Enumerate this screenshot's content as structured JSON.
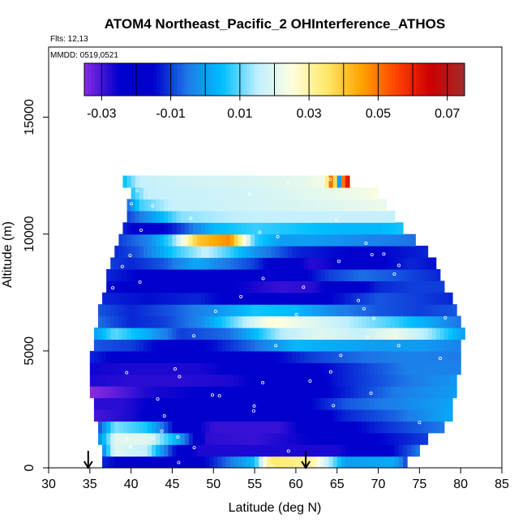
{
  "chart_data": {
    "type": "heatmap",
    "title": "ATOM4 Northeast_Pacific_2 OHInterference_ATHOS",
    "flights_label": "Flts: 12,13",
    "dates_label": "MMDD: 0519,0521",
    "xlabel": "Latitude (deg N)",
    "ylabel": "Altitude (m)",
    "xlim": [
      30,
      85
    ],
    "ylim": [
      0,
      18000
    ],
    "xticks": [
      "30",
      "35",
      "40",
      "45",
      "50",
      "55",
      "60",
      "65",
      "70",
      "75",
      "80",
      "85"
    ],
    "yticks": [
      "0",
      "5000",
      "10000",
      "15000"
    ],
    "colorbar": {
      "ticks": [
        "-0.03",
        "-0.01",
        "0.01",
        "0.03",
        "0.05",
        "0.07"
      ],
      "range": [
        -0.035,
        0.075
      ],
      "colors": [
        "#8a2be2",
        "#0000cd",
        "#0000cd",
        "#1e7be8",
        "#00bfff",
        "#bfefff",
        "#ffffe0",
        "#ffe96b",
        "#ffa500",
        "#ff4500",
        "#cc0000",
        "#a52a2a"
      ]
    },
    "bands": [
      {
        "alt": 250,
        "lat_min": 36.5,
        "lat_max": 73.5,
        "profile": [
          [
            36.5,
            -0.012
          ],
          [
            40,
            -0.018
          ],
          [
            45,
            -0.025
          ],
          [
            50,
            -0.012
          ],
          [
            55,
            0.005
          ],
          [
            57,
            0.035
          ],
          [
            62,
            0.03
          ],
          [
            66,
            0.0
          ],
          [
            72,
            0.002
          ],
          [
            73.5,
            -0.01
          ]
        ]
      },
      {
        "alt": 750,
        "lat_min": 36.5,
        "lat_max": 75,
        "profile": [
          [
            36.5,
            -0.005
          ],
          [
            38,
            0.02
          ],
          [
            42,
            0.015
          ],
          [
            45,
            -0.012
          ],
          [
            48,
            -0.027
          ],
          [
            55,
            -0.027
          ],
          [
            60,
            -0.027
          ],
          [
            65,
            -0.027
          ],
          [
            70,
            -0.02
          ],
          [
            75,
            -0.005
          ]
        ]
      },
      {
        "alt": 1250,
        "lat_min": 36,
        "lat_max": 76,
        "profile": [
          [
            36,
            -0.005
          ],
          [
            38,
            0.02
          ],
          [
            42,
            0.02
          ],
          [
            46,
            0.0
          ],
          [
            49,
            -0.028
          ],
          [
            55,
            -0.029
          ],
          [
            62,
            -0.025
          ],
          [
            70,
            -0.015
          ],
          [
            76,
            -0.01
          ]
        ]
      },
      {
        "alt": 1750,
        "lat_min": 36,
        "lat_max": 78,
        "profile": [
          [
            36,
            -0.01
          ],
          [
            38,
            0.012
          ],
          [
            42,
            0.006
          ],
          [
            46,
            -0.02
          ],
          [
            50,
            -0.029
          ],
          [
            58,
            -0.029
          ],
          [
            63,
            -0.02
          ],
          [
            70,
            -0.012
          ],
          [
            78,
            -0.005
          ]
        ]
      },
      {
        "alt": 2250,
        "lat_min": 35.5,
        "lat_max": 79,
        "profile": [
          [
            35.5,
            -0.03
          ],
          [
            40,
            -0.027
          ],
          [
            45,
            -0.02
          ],
          [
            52,
            -0.015
          ],
          [
            60,
            -0.022
          ],
          [
            66,
            -0.012
          ],
          [
            72,
            -0.007
          ],
          [
            79,
            0.002
          ]
        ]
      },
      {
        "alt": 2750,
        "lat_min": 35.5,
        "lat_max": 79,
        "profile": [
          [
            35.5,
            -0.028
          ],
          [
            39,
            -0.028
          ],
          [
            45,
            -0.022
          ],
          [
            52,
            -0.02
          ],
          [
            60,
            -0.018
          ],
          [
            66,
            -0.008
          ],
          [
            72,
            -0.004
          ],
          [
            79,
            0.001
          ]
        ]
      },
      {
        "alt": 3250,
        "lat_min": 35,
        "lat_max": 79.5,
        "profile": [
          [
            35,
            -0.035
          ],
          [
            38,
            -0.032
          ],
          [
            42,
            -0.027
          ],
          [
            48,
            -0.025
          ],
          [
            56,
            -0.022
          ],
          [
            64,
            -0.015
          ],
          [
            72,
            -0.005
          ],
          [
            79.5,
            0.0
          ]
        ]
      },
      {
        "alt": 3750,
        "lat_min": 35,
        "lat_max": 79.5,
        "profile": [
          [
            35,
            -0.027
          ],
          [
            40,
            -0.028
          ],
          [
            46,
            -0.028
          ],
          [
            52,
            -0.027
          ],
          [
            58,
            -0.022
          ],
          [
            66,
            -0.012
          ],
          [
            74,
            -0.005
          ],
          [
            79.5,
            -0.001
          ]
        ]
      },
      {
        "alt": 4250,
        "lat_min": 35,
        "lat_max": 80,
        "profile": [
          [
            35,
            -0.026
          ],
          [
            40,
            -0.027
          ],
          [
            48,
            -0.027
          ],
          [
            56,
            -0.022
          ],
          [
            62,
            -0.016
          ],
          [
            68,
            -0.01
          ],
          [
            74,
            -0.004
          ],
          [
            80,
            -0.004
          ]
        ]
      },
      {
        "alt": 4750,
        "lat_min": 35,
        "lat_max": 80,
        "profile": [
          [
            35,
            -0.012
          ],
          [
            40,
            -0.018
          ],
          [
            48,
            -0.02
          ],
          [
            55,
            -0.018
          ],
          [
            62,
            -0.01
          ],
          [
            68,
            -0.006
          ],
          [
            74,
            -0.004
          ],
          [
            80,
            -0.005
          ]
        ]
      },
      {
        "alt": 5250,
        "lat_min": 35.5,
        "lat_max": 80,
        "profile": [
          [
            35.5,
            -0.008
          ],
          [
            40,
            -0.01
          ],
          [
            45,
            -0.018
          ],
          [
            50,
            -0.014
          ],
          [
            55,
            -0.006
          ],
          [
            60,
            0.004
          ],
          [
            65,
            0.002
          ],
          [
            70,
            0.0
          ],
          [
            75,
            0.0
          ],
          [
            80,
            -0.004
          ]
        ]
      },
      {
        "alt": 5750,
        "lat_min": 35.5,
        "lat_max": 80.5,
        "profile": [
          [
            35.5,
            0.0
          ],
          [
            38,
            0.01
          ],
          [
            42,
            0.002
          ],
          [
            46,
            -0.01
          ],
          [
            52,
            -0.006
          ],
          [
            58,
            0.014
          ],
          [
            63,
            0.02
          ],
          [
            68,
            0.016
          ],
          [
            72,
            0.022
          ],
          [
            76,
            0.014
          ],
          [
            80.5,
            0.0
          ]
        ]
      },
      {
        "alt": 6250,
        "lat_min": 36,
        "lat_max": 80,
        "profile": [
          [
            36,
            -0.006
          ],
          [
            40,
            -0.012
          ],
          [
            44,
            -0.01
          ],
          [
            48,
            -0.004
          ],
          [
            53,
            0.012
          ],
          [
            57,
            0.026
          ],
          [
            62,
            0.02
          ],
          [
            67,
            0.014
          ],
          [
            72,
            0.008
          ],
          [
            76,
            0.002
          ],
          [
            80,
            -0.006
          ]
        ]
      },
      {
        "alt": 6750,
        "lat_min": 36,
        "lat_max": 79.5,
        "profile": [
          [
            36,
            -0.008
          ],
          [
            40,
            -0.012
          ],
          [
            45,
            -0.008
          ],
          [
            50,
            -0.002
          ],
          [
            55,
            0.006
          ],
          [
            60,
            0.004
          ],
          [
            65,
            -0.004
          ],
          [
            70,
            -0.008
          ],
          [
            75,
            -0.01
          ],
          [
            79.5,
            -0.008
          ]
        ]
      },
      {
        "alt": 7250,
        "lat_min": 36.5,
        "lat_max": 79,
        "profile": [
          [
            36.5,
            -0.012
          ],
          [
            42,
            -0.014
          ],
          [
            48,
            -0.012
          ],
          [
            54,
            -0.018
          ],
          [
            60,
            -0.02
          ],
          [
            65,
            -0.014
          ],
          [
            70,
            -0.008
          ],
          [
            75,
            -0.01
          ],
          [
            79,
            -0.012
          ]
        ]
      },
      {
        "alt": 7750,
        "lat_min": 37,
        "lat_max": 78,
        "profile": [
          [
            37,
            -0.014
          ],
          [
            42,
            -0.018
          ],
          [
            48,
            -0.022
          ],
          [
            54,
            -0.026
          ],
          [
            58,
            -0.029
          ],
          [
            62,
            -0.028
          ],
          [
            66,
            -0.02
          ],
          [
            70,
            -0.012
          ],
          [
            74,
            -0.01
          ],
          [
            78,
            -0.01
          ]
        ]
      },
      {
        "alt": 8250,
        "lat_min": 37,
        "lat_max": 77.5,
        "profile": [
          [
            37,
            -0.012
          ],
          [
            42,
            -0.016
          ],
          [
            46,
            -0.02
          ],
          [
            52,
            -0.022
          ],
          [
            57,
            -0.026
          ],
          [
            60,
            -0.018
          ],
          [
            64,
            -0.01
          ],
          [
            68,
            -0.006
          ],
          [
            72,
            -0.008
          ],
          [
            77.5,
            -0.012
          ]
        ]
      },
      {
        "alt": 8750,
        "lat_min": 37.5,
        "lat_max": 77,
        "profile": [
          [
            37.5,
            -0.01
          ],
          [
            40,
            -0.012
          ],
          [
            44,
            -0.008
          ],
          [
            48,
            0.002
          ],
          [
            51,
            -0.004
          ],
          [
            55,
            -0.01
          ],
          [
            58,
            -0.02
          ],
          [
            62,
            -0.028
          ],
          [
            66,
            -0.024
          ],
          [
            70,
            -0.016
          ],
          [
            74,
            -0.012
          ],
          [
            77,
            -0.014
          ]
        ]
      },
      {
        "alt": 9250,
        "lat_min": 38,
        "lat_max": 76,
        "profile": [
          [
            38,
            -0.012
          ],
          [
            41,
            -0.008
          ],
          [
            45,
            0.006
          ],
          [
            49,
            0.016
          ],
          [
            52,
            0.008
          ],
          [
            56,
            -0.004
          ],
          [
            60,
            -0.012
          ],
          [
            64,
            -0.014
          ],
          [
            68,
            -0.016
          ],
          [
            72,
            -0.014
          ],
          [
            76,
            -0.012
          ]
        ]
      },
      {
        "alt": 9750,
        "lat_min": 38.5,
        "lat_max": 74.5,
        "profile": [
          [
            38.5,
            -0.01
          ],
          [
            42,
            -0.004
          ],
          [
            45,
            0.01
          ],
          [
            48,
            0.04
          ],
          [
            52,
            0.048
          ],
          [
            55,
            0.008
          ],
          [
            58,
            0.0
          ],
          [
            62,
            0.0
          ],
          [
            66,
            -0.002
          ],
          [
            70,
            -0.004
          ],
          [
            74.5,
            -0.006
          ]
        ]
      },
      {
        "alt": 10250,
        "lat_min": 39,
        "lat_max": 73,
        "profile": [
          [
            39,
            -0.012
          ],
          [
            42,
            -0.02
          ],
          [
            46,
            -0.01
          ],
          [
            50,
            0.004
          ],
          [
            55,
            0.008
          ],
          [
            60,
            0.006
          ],
          [
            65,
            0.004
          ],
          [
            70,
            0.004
          ],
          [
            73,
            0.006
          ]
        ]
      },
      {
        "alt": 10750,
        "lat_min": 39.5,
        "lat_max": 72,
        "profile": [
          [
            39.5,
            -0.01
          ],
          [
            42,
            -0.002
          ],
          [
            46,
            0.012
          ],
          [
            50,
            0.014
          ],
          [
            55,
            0.016
          ],
          [
            60,
            0.016
          ],
          [
            65,
            0.016
          ],
          [
            70,
            0.016
          ],
          [
            72,
            0.016
          ]
        ]
      },
      {
        "alt": 11250,
        "lat_min": 39.5,
        "lat_max": 71,
        "profile": [
          [
            39.5,
            -0.008
          ],
          [
            41,
            0.008
          ],
          [
            45,
            0.016
          ],
          [
            50,
            0.017
          ],
          [
            55,
            0.018
          ],
          [
            60,
            0.019
          ],
          [
            65,
            0.02
          ],
          [
            71,
            0.022
          ]
        ]
      },
      {
        "alt": 11750,
        "lat_min": 40,
        "lat_max": 70,
        "profile": [
          [
            40,
            0.006
          ],
          [
            42,
            0.016
          ],
          [
            48,
            0.017
          ],
          [
            54,
            0.018
          ],
          [
            60,
            0.02
          ],
          [
            66,
            0.022
          ],
          [
            70,
            0.024
          ]
        ]
      },
      {
        "alt": 12250,
        "lat_min": 39,
        "lat_max": 66.5,
        "profile": [
          [
            39,
            0.004
          ],
          [
            41,
            0.016
          ],
          [
            48,
            0.018
          ],
          [
            55,
            0.019
          ],
          [
            61,
            0.021
          ],
          [
            63.5,
            0.023
          ],
          [
            64.5,
            0.06
          ],
          [
            65.2,
            -0.005
          ],
          [
            65.8,
            0.055
          ],
          [
            66.5,
            0.065
          ]
        ]
      }
    ],
    "markers": [
      {
        "lat": 34.8,
        "label": "↓"
      },
      {
        "lat": 61.2,
        "label": "↓"
      }
    ]
  }
}
